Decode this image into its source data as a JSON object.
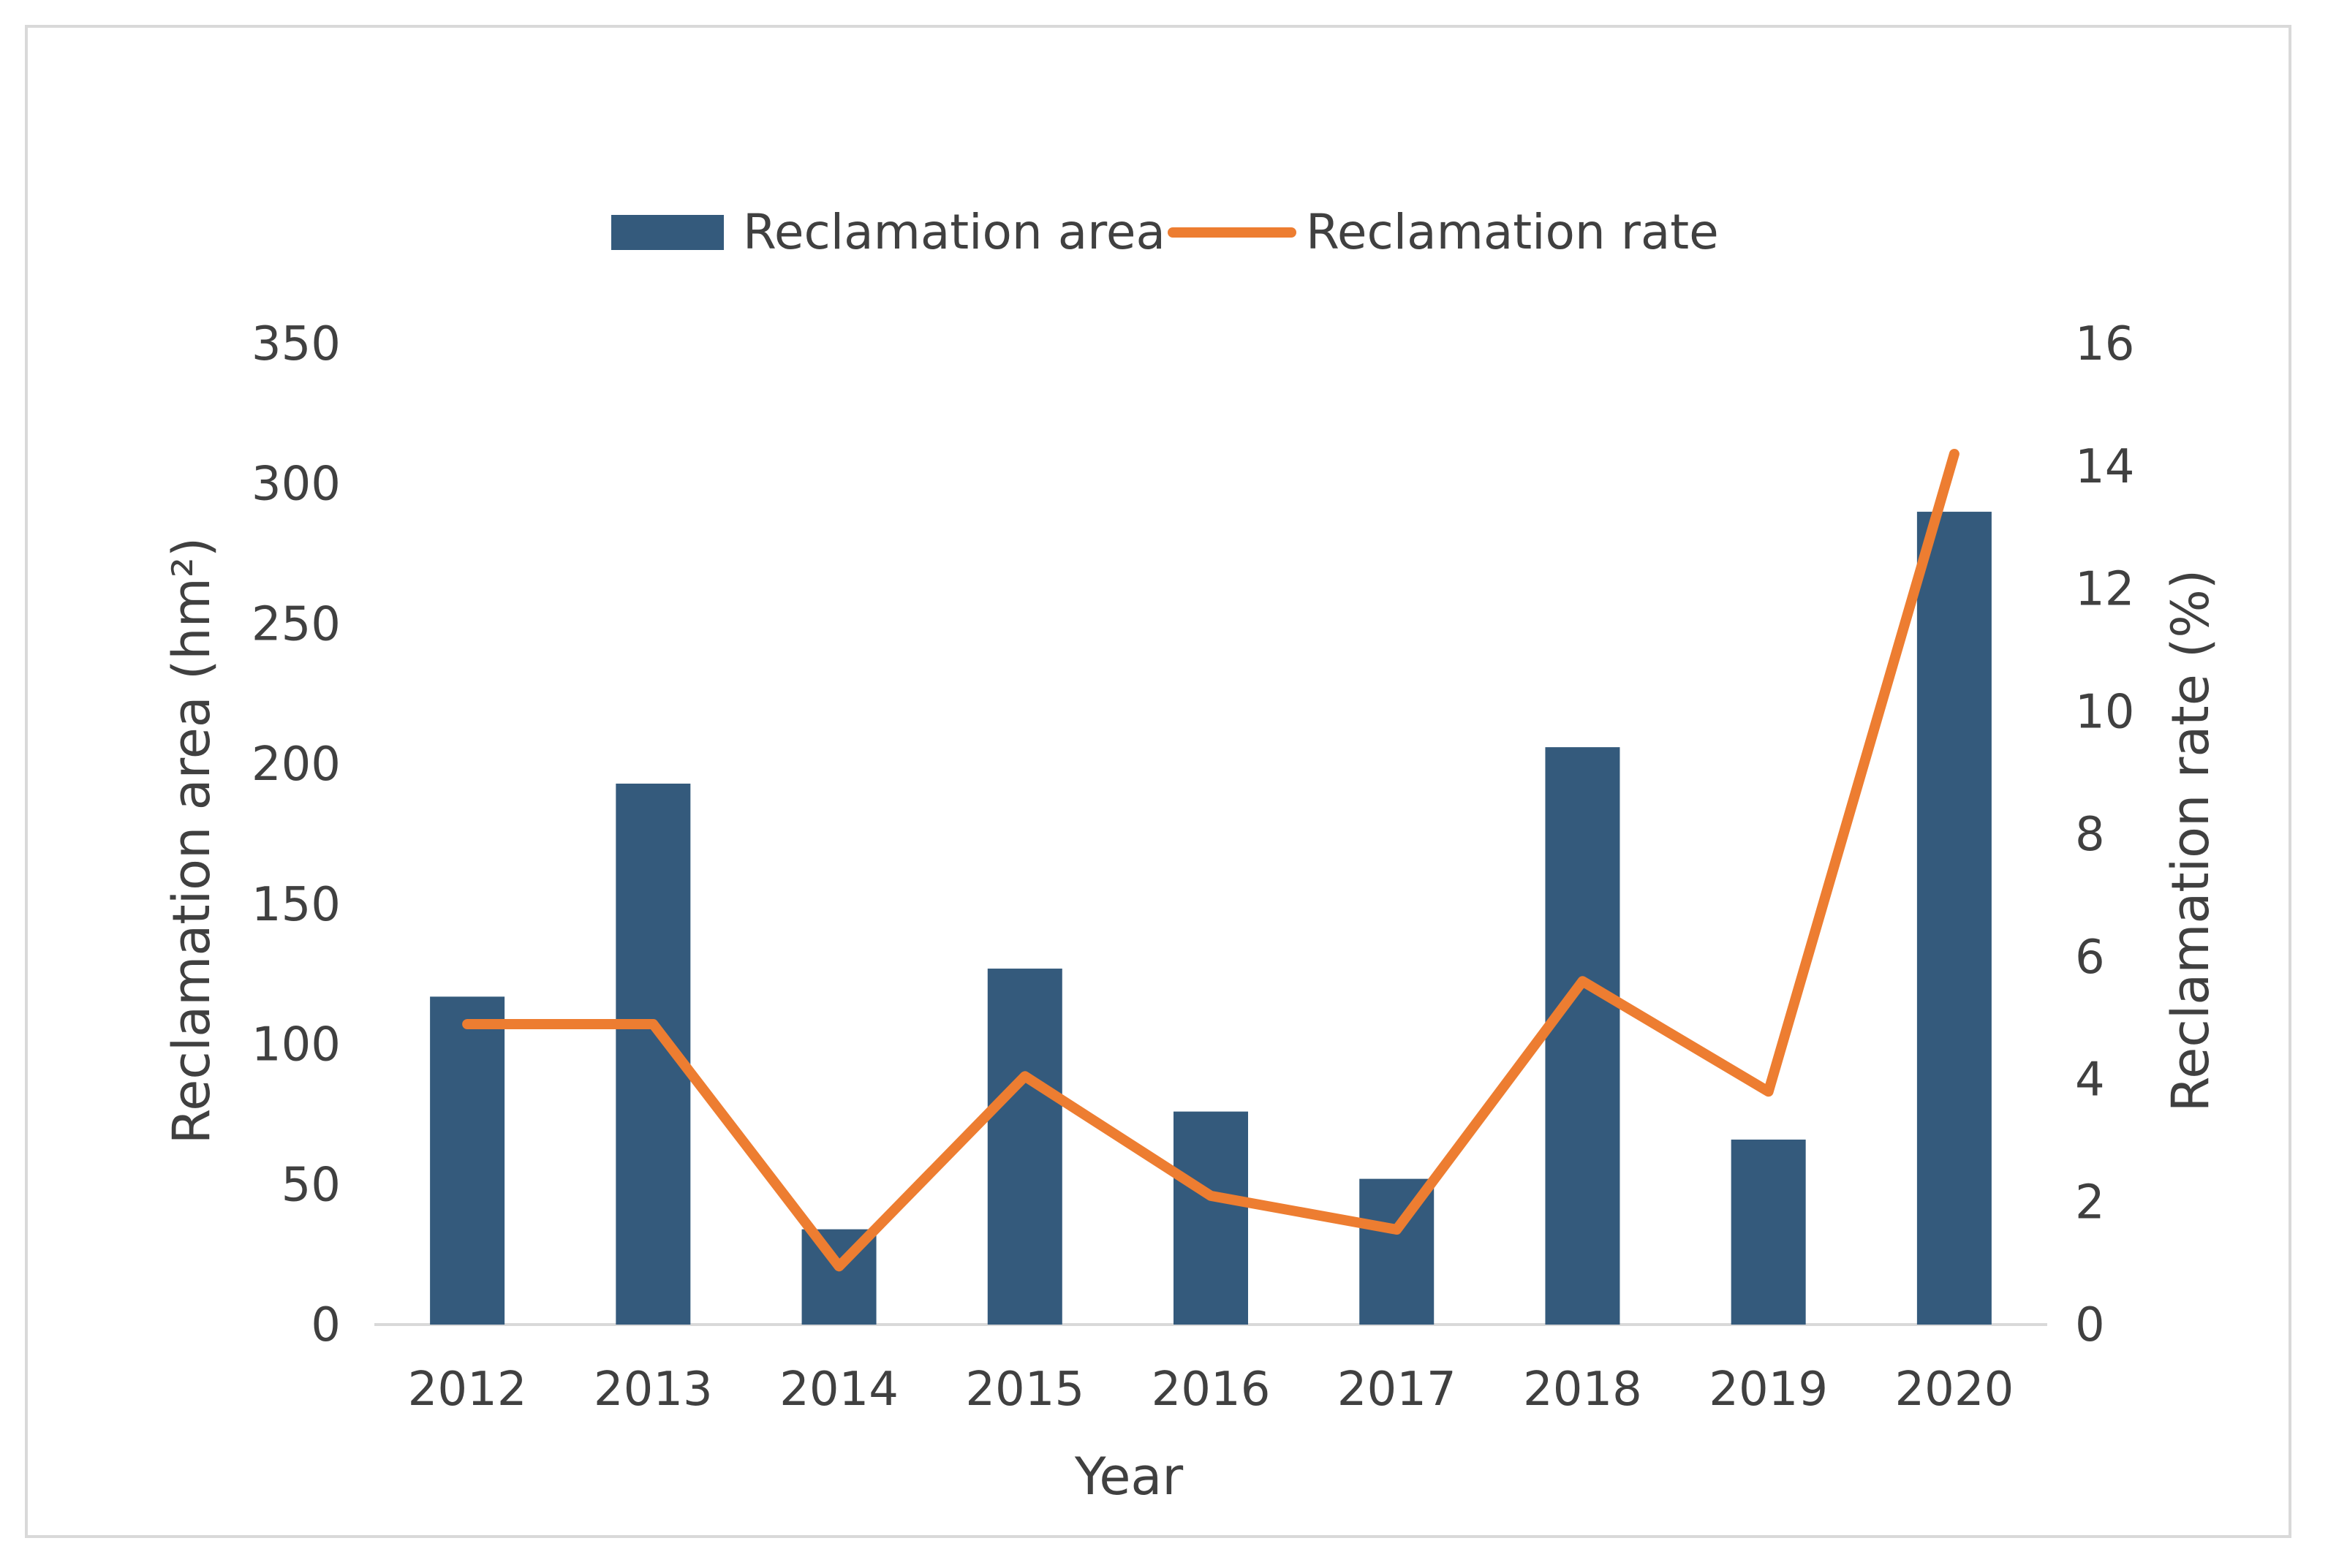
{
  "chart_data": {
    "type": "bar",
    "title": "",
    "categories": [
      "2012",
      "2013",
      "2014",
      "2015",
      "2016",
      "2017",
      "2018",
      "2019",
      "2020"
    ],
    "series": [
      {
        "name": "Reclamation area",
        "type": "bar",
        "axis": "left",
        "color": "#345a7c",
        "values": [
          117,
          193,
          34,
          127,
          76,
          52,
          206,
          66,
          290
        ]
      },
      {
        "name": "Reclamation rate",
        "type": "line",
        "axis": "right",
        "color": "#ed7d31",
        "values": [
          4.9,
          4.9,
          0.95,
          4.05,
          2.1,
          1.55,
          5.6,
          3.8,
          14.2
        ]
      }
    ],
    "xlabel": "Year",
    "ylabel": "Reclamation area (hm²)",
    "y2label": "Reclamation rate (%)",
    "ylim": [
      0,
      350
    ],
    "y2lim": [
      0,
      16
    ],
    "yticks": [
      "0",
      "50",
      "100",
      "150",
      "200",
      "250",
      "300",
      "350"
    ],
    "y2ticks": [
      "0",
      "2",
      "4",
      "6",
      "8",
      "10",
      "12",
      "14",
      "16"
    ],
    "grid": false,
    "legend_position": "top-center"
  }
}
